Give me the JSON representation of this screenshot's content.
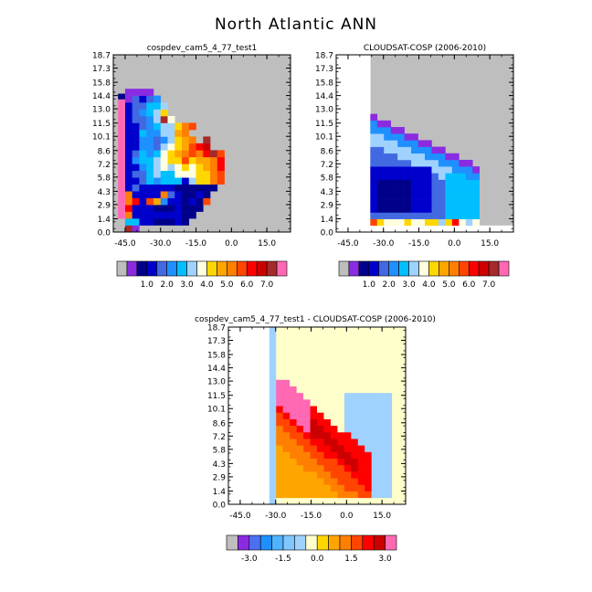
{
  "figure": {
    "title": "North Atlantic ANN"
  },
  "colors": {
    "missing": "#bebebe",
    "plot_background": "#ffffff",
    "abs_palette": [
      "#bebebe",
      "#8a2be2",
      "#00008b",
      "#0000cd",
      "#4169e1",
      "#1e90ff",
      "#00bfff",
      "#a0d2ff",
      "#ffffe0",
      "#ffd700",
      "#ffa500",
      "#ff7f00",
      "#ff4500",
      "#ff0000",
      "#cd0000",
      "#a52a2a",
      "#ff69b4"
    ],
    "diff_palette": [
      "#bebebe",
      "#8a2be2",
      "#4b6ff0",
      "#1e90ff",
      "#4fb4ff",
      "#7fc7ff",
      "#a0d2ff",
      "#ffffcc",
      "#ffd700",
      "#ffa500",
      "#ff7f00",
      "#ff4500",
      "#ff0000",
      "#cd0000",
      "#ff69b4"
    ]
  },
  "chart_data": [
    {
      "type": "heatmap",
      "title": "cospdev_cam5_4_77_test1",
      "xlabel": "",
      "ylabel": "",
      "x_ticks": [
        "-45.0",
        "-30.0",
        "-15.0",
        "0.0",
        "15.0"
      ],
      "y_ticks": [
        "0.0",
        "1.4",
        "2.9",
        "4.3",
        "5.8",
        "7.2",
        "8.6",
        "10.1",
        "11.5",
        "13.0",
        "14.4",
        "15.8",
        "17.3",
        "18.7"
      ],
      "xlim": [
        -50,
        25
      ],
      "ylim": [
        0,
        18.7
      ],
      "background": "missing",
      "colorbar_labels": [
        "1.0",
        "2.0",
        "3.0",
        "4.0",
        "5.0",
        "6.0",
        "7.0"
      ],
      "grid": {
        "x0": -48,
        "dx": 3,
        "y0": 0,
        "dy": 0.72,
        "rows": [
          "16,15,1,16,16,16,16,16,16,16,16,16,16,16,16,16,16,16,16",
          "16,6,6,3,3,2,2,2,3,2,16,16,16,16,16,16,16,16,16",
          "16,11,3,3,3,3,3,3,3,2,2,16,16,16,16,16,16,16,16",
          "16,13,3,3,3,2,2,2,3,2,2,2,16,16,16,16,16,16,16",
          "16,11,13,3,12,10,5,3,3,2,3,2,12,16,16,16,16,16,16",
          "16,11,3,3,3,3,11,4,3,2,2,3,2,16,16,16,16,16,16",
          "16,3,4,3,3,3,3,3,2,2,2,2,2,2,16,16,16,16,16",
          "16,3,3,4,6,5,6,6,6,3,7,9,9,11,12,16,16,16,16",
          "16,3,4,4,6,7,6,6,8,8,8,9,9,11,12,16,16,16,16",
          "16,3,3,5,6,7,8,7,8,9,8,9,10,11,13,16,16,16,16",
          "16,3,5,6,6,7,8,9,9,12,9,10,10,11,13,16,16,16,16",
          "16,3,4,6,5,6,8,9,10,11,12,11,13,15,12,16,16,16,16",
          "16,3,3,5,5,4,7,8,9,10,12,13,14,16,16,16,16,16,16",
          "16,3,3,5,5,4,5,7,9,10,11,16,15,16,16,16,16,16,16",
          "16,3,3,6,5,5,7,7,10,11,16,16,16,16,16,16,16,16,16",
          "16,3,3,4,5,6,7,7,9,11,12,16,16,16,16,16,16,16,16",
          "16,3,4,4,5,7,15,8,16,16,16,16,16,16,16,16,16,16,16",
          "16,3,4,5,6,7,9,16,16,16,16,16,16,16,16,16,16,16,16",
          "16,3,4,4,6,6,7,16,16,16,16,16,16,16,16,16,16,16,16",
          "16,1,4,3,4,5,16,16,16,16,16,16,16,16,16,16,16,16,16",
          "16,1,1,1,1,16,16,16,16,16,16,16,16,16,16,16,16,16,16"
        ]
      }
    },
    {
      "type": "heatmap",
      "title": "CLOUDSAT-COSP (2006-2010)",
      "xlabel": "",
      "ylabel": "",
      "x_ticks": [
        "-45.0",
        "-30.0",
        "-15.0",
        "0.0",
        "15.0"
      ],
      "y_ticks": [
        "0.0",
        "1.4",
        "2.9",
        "4.3",
        "5.8",
        "7.2",
        "8.6",
        "10.1",
        "11.5",
        "13.0",
        "14.4",
        "15.8",
        "17.3",
        "18.7"
      ],
      "xlim": [
        -50,
        25
      ],
      "ylim": [
        0,
        18.7
      ],
      "background": "missing",
      "colorbar_labels": [
        "1.0",
        "2.0",
        "3.0",
        "4.0",
        "5.0",
        "6.0",
        "7.0"
      ]
    },
    {
      "type": "heatmap",
      "title": "cospdev_cam5_4_77_test1 - CLOUDSAT-COSP (2006-2010)",
      "xlabel": "",
      "ylabel": "",
      "x_ticks": [
        "-45.0",
        "-30.0",
        "-15.0",
        "0.0",
        "15.0"
      ],
      "y_ticks": [
        "0.0",
        "1.4",
        "2.9",
        "4.3",
        "5.8",
        "7.2",
        "8.6",
        "10.1",
        "11.5",
        "13.0",
        "14.4",
        "15.8",
        "17.3",
        "18.7"
      ],
      "xlim": [
        -50,
        25
      ],
      "ylim": [
        0,
        18.7
      ],
      "background": "near-zero",
      "colorbar_labels": [
        "-3.0",
        "-1.5",
        "0.0",
        "1.5",
        "3.0"
      ]
    }
  ]
}
